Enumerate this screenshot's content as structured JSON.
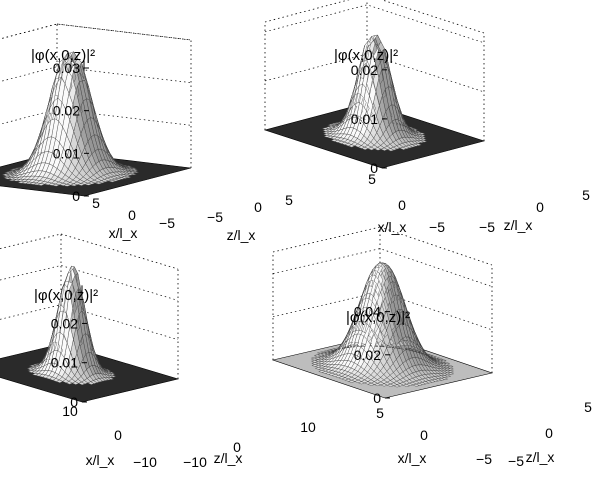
{
  "chart_data": [
    {
      "type": "surface3d",
      "panel": "top-left",
      "zlabel": "|φ(x,0,z)|²",
      "xlabel": "x/l_x",
      "ylabel": "z/l_x",
      "zticks": [
        "0",
        "0.01",
        "0.02",
        "0.03"
      ],
      "zlim": [
        0,
        0.035
      ],
      "xticks": [
        "5",
        "0",
        "−5"
      ],
      "yticks": [
        "−5",
        "0",
        "5"
      ],
      "xlim": [
        -6,
        6
      ],
      "ylim": [
        -6,
        6
      ],
      "peak": 0.034,
      "grid": true
    },
    {
      "type": "surface3d",
      "panel": "top-right",
      "zlabel": "|φ(x,0,z)|²",
      "xlabel": "x/l_x",
      "ylabel": "z/l_x",
      "zticks": [
        "0",
        "0.01",
        "0.02"
      ],
      "zlim": [
        0,
        0.025
      ],
      "xticks": [
        "5",
        "0",
        "−5"
      ],
      "yticks": [
        "−5",
        "0",
        "5"
      ],
      "xlim": [
        -6,
        6
      ],
      "ylim": [
        -6,
        6
      ],
      "peak": 0.023,
      "grid": true
    },
    {
      "type": "surface3d",
      "panel": "bottom-left",
      "zlabel": "|φ(x,0,z)|²",
      "xlabel": "x/l_x",
      "ylabel": "z/l_x",
      "zticks": [
        "0",
        "0.01",
        "0.02"
      ],
      "zlim": [
        0,
        0.03
      ],
      "xticks": [
        "10",
        "0",
        "−10"
      ],
      "yticks": [
        "−10",
        "0",
        "10"
      ],
      "xlim": [
        -11,
        11
      ],
      "ylim": [
        -11,
        11
      ],
      "peak": 0.028,
      "grid": true
    },
    {
      "type": "surface3d",
      "panel": "bottom-right",
      "zlabel": "|φ(x,0,z)|²",
      "xlabel": "x/l_x",
      "ylabel": "z/l_x",
      "zticks": [
        "0",
        "0.02",
        "0.04"
      ],
      "zlim": [
        0,
        0.05
      ],
      "xticks": [
        "5",
        "0",
        "−5"
      ],
      "yticks": [
        "−5",
        "0",
        "5"
      ],
      "xlim": [
        -6,
        6
      ],
      "ylim": [
        -6,
        6
      ],
      "peak": 0.045,
      "grid": true
    }
  ]
}
